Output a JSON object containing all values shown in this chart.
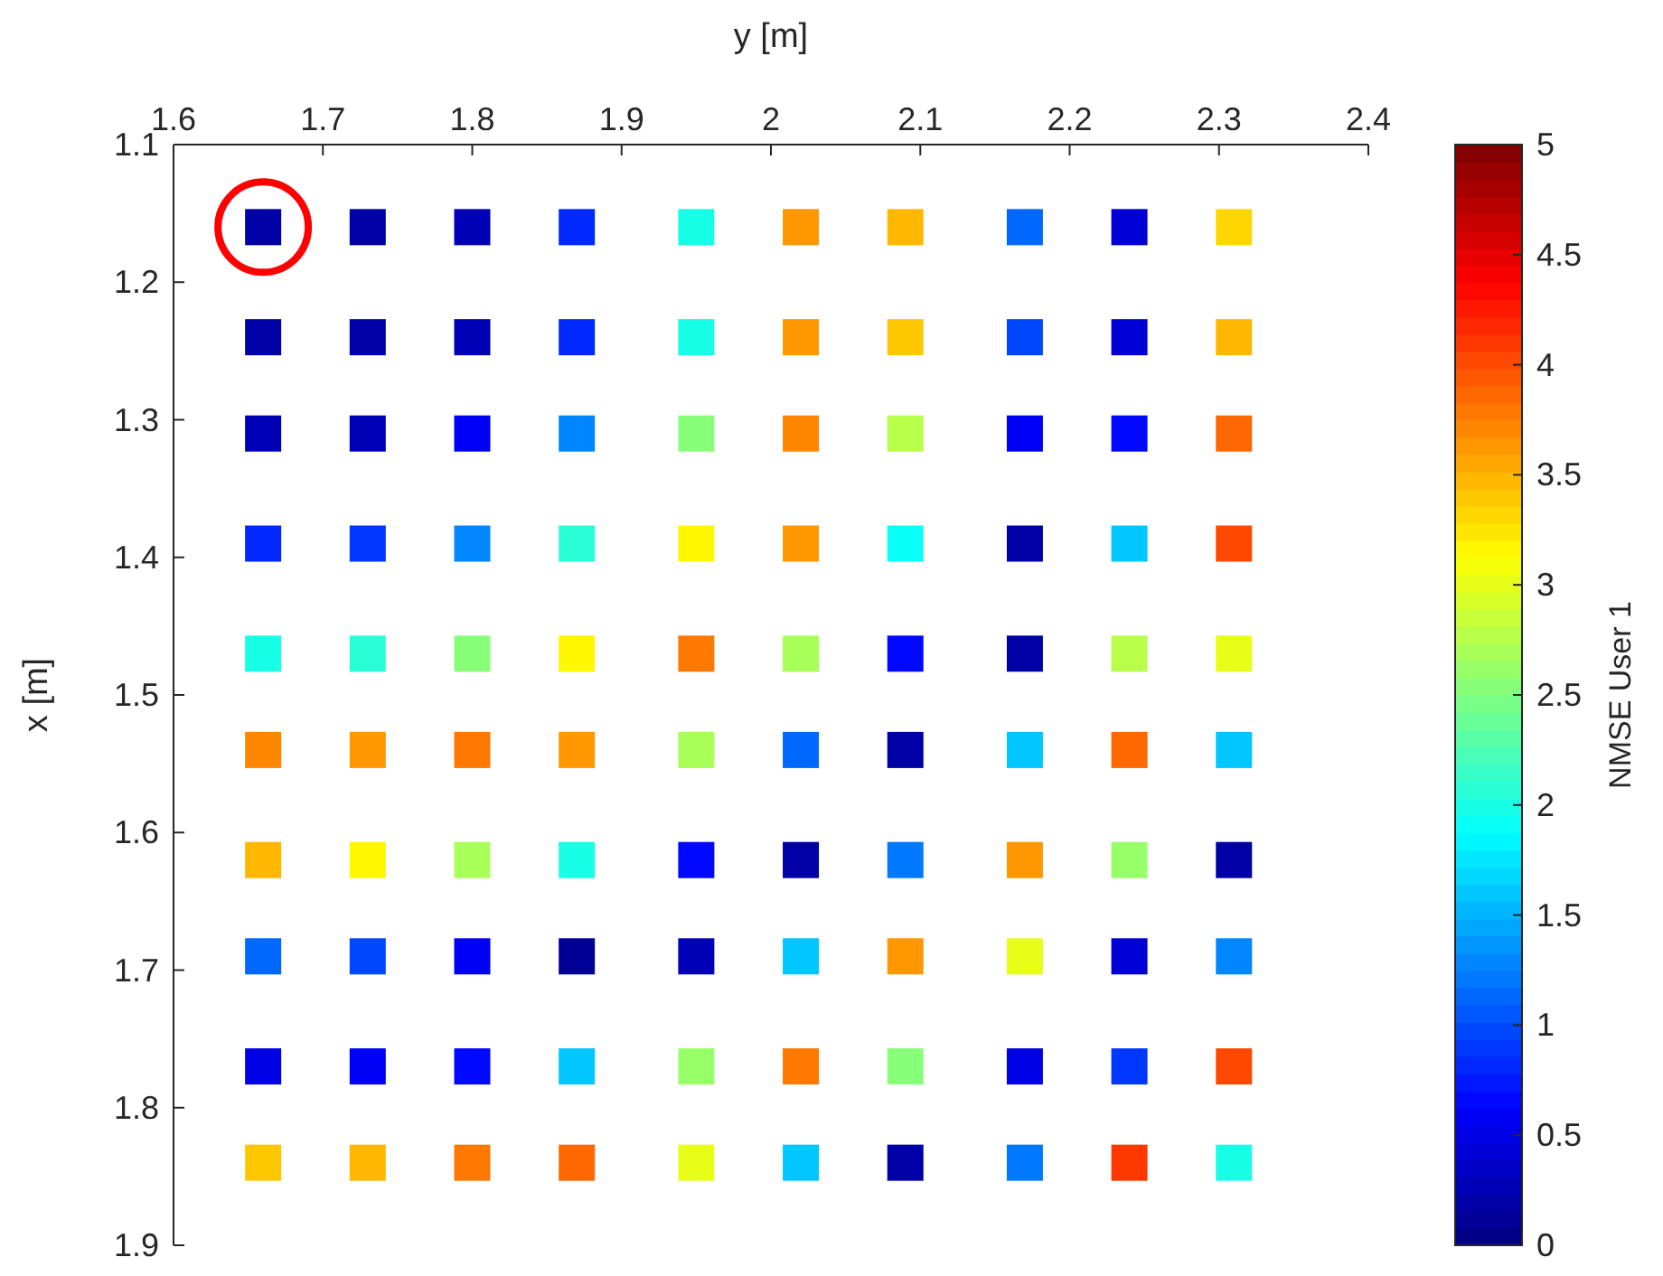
{
  "chart_data": {
    "type": "scatter",
    "xlabel": "y [m]",
    "ylabel": "x [m]",
    "clabel": "NMSE User 1",
    "marker": "square",
    "grid": false,
    "xlim": [
      1.6,
      2.4
    ],
    "xticks": [
      1.6,
      1.7,
      1.8,
      1.9,
      2,
      2.1,
      2.2,
      2.3,
      2.4
    ],
    "ylim": [
      1.9,
      1.1
    ],
    "yticks": [
      1.1,
      1.2,
      1.3,
      1.4,
      1.5,
      1.6,
      1.7,
      1.8,
      1.9
    ],
    "clim": [
      0,
      5
    ],
    "cticks": [
      0,
      0.5,
      1,
      1.5,
      2,
      2.5,
      3,
      3.5,
      4,
      4.5,
      5
    ],
    "series": [
      {
        "x": [
          1.66,
          1.73,
          1.8,
          1.87,
          1.95,
          2.02,
          2.09,
          2.17,
          2.24,
          2.31,
          1.66,
          1.73,
          1.8,
          1.87,
          1.95,
          2.02,
          2.09,
          2.17,
          2.24,
          2.31,
          1.66,
          1.73,
          1.8,
          1.87,
          1.95,
          2.02,
          2.09,
          2.17,
          2.24,
          2.31,
          1.66,
          1.73,
          1.8,
          1.87,
          1.95,
          2.02,
          2.09,
          2.17,
          2.24,
          2.31,
          1.66,
          1.73,
          1.8,
          1.87,
          1.95,
          2.02,
          2.09,
          2.17,
          2.24,
          2.31,
          1.66,
          1.73,
          1.8,
          1.87,
          1.95,
          2.02,
          2.09,
          2.17,
          2.24,
          2.31,
          1.66,
          1.73,
          1.8,
          1.87,
          1.95,
          2.02,
          2.09,
          2.17,
          2.24,
          2.31,
          1.66,
          1.73,
          1.8,
          1.87,
          1.95,
          2.02,
          2.09,
          2.17,
          2.24,
          2.31,
          1.66,
          1.73,
          1.8,
          1.87,
          1.95,
          2.02,
          2.09,
          2.17,
          2.24,
          2.31,
          1.66,
          1.73,
          1.8,
          1.87,
          1.95,
          2.02,
          2.09,
          2.17,
          2.24,
          2.31
        ],
        "values": [
          1.16,
          1.16,
          1.16,
          1.16,
          1.16,
          1.16,
          1.16,
          1.16,
          1.16,
          1.16,
          1.24,
          1.24,
          1.24,
          1.24,
          1.24,
          1.24,
          1.24,
          1.24,
          1.24,
          1.24,
          1.31,
          1.31,
          1.31,
          1.31,
          1.31,
          1.31,
          1.31,
          1.31,
          1.31,
          1.31,
          1.39,
          1.39,
          1.39,
          1.39,
          1.39,
          1.39,
          1.39,
          1.39,
          1.39,
          1.39,
          1.47,
          1.47,
          1.47,
          1.47,
          1.47,
          1.47,
          1.47,
          1.47,
          1.47,
          1.47,
          1.54,
          1.54,
          1.54,
          1.54,
          1.54,
          1.54,
          1.54,
          1.54,
          1.54,
          1.54,
          1.62,
          1.62,
          1.62,
          1.62,
          1.62,
          1.62,
          1.62,
          1.62,
          1.62,
          1.62,
          1.69,
          1.69,
          1.69,
          1.69,
          1.69,
          1.69,
          1.69,
          1.69,
          1.69,
          1.69,
          1.77,
          1.77,
          1.77,
          1.77,
          1.77,
          1.77,
          1.77,
          1.77,
          1.77,
          1.77,
          1.84,
          1.84,
          1.84,
          1.84,
          1.84,
          1.84,
          1.84,
          1.84,
          1.84,
          1.84
        ],
        "cvalues": [
          0.2,
          0.2,
          0.3,
          0.8,
          2.0,
          3.6,
          3.5,
          1.1,
          0.4,
          3.3,
          0.2,
          0.2,
          0.3,
          0.8,
          2.0,
          3.6,
          3.4,
          1.0,
          0.4,
          3.5,
          0.3,
          0.3,
          0.6,
          1.3,
          2.5,
          3.7,
          2.8,
          0.6,
          0.7,
          3.9,
          0.8,
          0.9,
          1.3,
          2.1,
          3.2,
          3.6,
          1.9,
          0.2,
          1.6,
          4.0,
          2.0,
          2.1,
          2.5,
          3.2,
          3.8,
          2.7,
          0.7,
          0.2,
          2.8,
          3.0,
          3.7,
          3.6,
          3.8,
          3.6,
          2.7,
          1.1,
          0.2,
          1.6,
          3.9,
          1.6,
          3.5,
          3.2,
          2.7,
          2.0,
          0.7,
          0.2,
          1.2,
          3.6,
          2.6,
          0.2,
          1.1,
          1.0,
          0.6,
          0.1,
          0.3,
          1.6,
          3.6,
          3.0,
          0.4,
          1.3,
          0.5,
          0.6,
          0.7,
          1.6,
          2.6,
          3.8,
          2.5,
          0.5,
          0.9,
          4.0,
          3.4,
          3.5,
          3.8,
          3.9,
          3.0,
          1.6,
          0.2,
          1.2,
          4.1,
          2.0
        ]
      }
    ]
  }
}
